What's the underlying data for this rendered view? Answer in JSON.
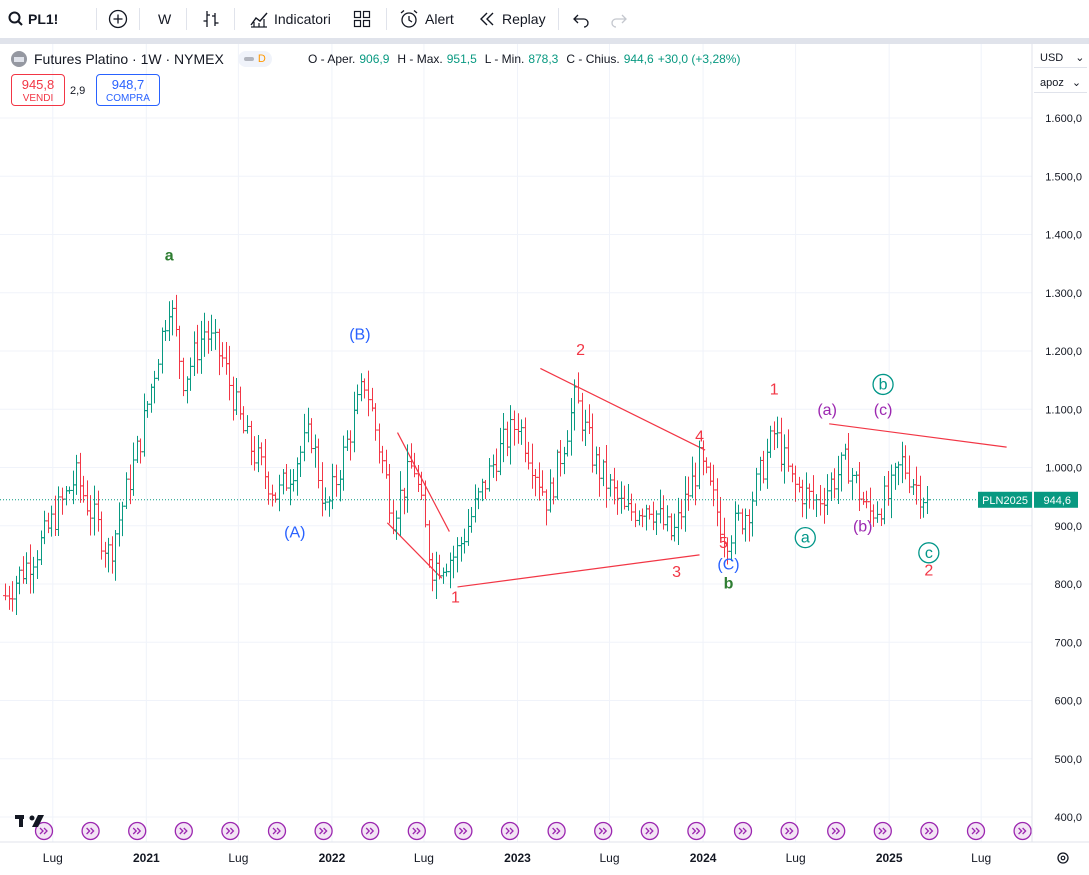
{
  "toolbar": {
    "symbol": "PL1!",
    "interval": "W",
    "indicators_label": "Indicatori",
    "alert_label": "Alert",
    "replay_label": "Replay"
  },
  "legend": {
    "title": "Futures Platino · 1W · NYMEX",
    "badge": "D",
    "open_label": "O - Aper.",
    "open": "906,9",
    "high_label": "H - Max.",
    "high": "951,5",
    "low_label": "L - Min.",
    "low": "878,3",
    "close_label": "C - Chius.",
    "close": "944,6",
    "change": "+30,0 (+3,28%)"
  },
  "trade": {
    "sell_price": "945,8",
    "sell_label": "VENDI",
    "spread": "2,9",
    "buy_price": "948,7",
    "buy_label": "COMPRA"
  },
  "scale_controls": {
    "currency": "USD",
    "mode": "apoz"
  },
  "colors": {
    "up": "#089981",
    "down": "#f23645",
    "blue_wave": "#2962ff",
    "green_wave": "#2e7d32",
    "purple_wave": "#9c27b0",
    "teal_wave": "#009688",
    "event": "#9c27b0"
  },
  "chart_data": {
    "type": "bar",
    "style": "ohlc",
    "ylim": [
      400,
      1680
    ],
    "y_ticks": [
      "1.600,0",
      "1.500,0",
      "1.400,0",
      "1.300,0",
      "1.200,0",
      "1.100,0",
      "1.000,0",
      "900,0",
      "800,0",
      "700,0",
      "600,0",
      "500,0",
      "400,0"
    ],
    "y_tick_values": [
      1600,
      1500,
      1400,
      1300,
      1200,
      1100,
      1000,
      900,
      800,
      700,
      600,
      500,
      400
    ],
    "x_ticks": [
      {
        "label": "Lug",
        "date": "2020-07-01"
      },
      {
        "label": "2021",
        "date": "2021-01-01"
      },
      {
        "label": "Lug",
        "date": "2021-07-01"
      },
      {
        "label": "2022",
        "date": "2022-01-01"
      },
      {
        "label": "Lug",
        "date": "2022-07-01"
      },
      {
        "label": "2023",
        "date": "2023-01-01"
      },
      {
        "label": "Lug",
        "date": "2023-07-01"
      },
      {
        "label": "2024",
        "date": "2024-01-01"
      },
      {
        "label": "Lug",
        "date": "2024-07-01"
      },
      {
        "label": "2025",
        "date": "2025-01-01"
      },
      {
        "label": "Lug",
        "date": "2025-07-01"
      }
    ],
    "x_range": [
      "2020-03-29",
      "2025-10-05"
    ],
    "last_price_label": "PLN2025",
    "last_price": 944.6,
    "last_price_text": "944,6",
    "anchors": [
      {
        "date": "2020-03-29",
        "price": 780
      },
      {
        "date": "2020-06-01",
        "price": 860
      },
      {
        "date": "2020-08-15",
        "price": 985
      },
      {
        "date": "2020-10-20",
        "price": 850
      },
      {
        "date": "2020-12-20",
        "price": 1050
      },
      {
        "date": "2021-02-15",
        "price": 1290
      },
      {
        "date": "2021-03-15",
        "price": 1150
      },
      {
        "date": "2021-04-25",
        "price": 1235
      },
      {
        "date": "2021-05-30",
        "price": 1185
      },
      {
        "date": "2021-07-15",
        "price": 1050
      },
      {
        "date": "2021-09-15",
        "price": 950
      },
      {
        "date": "2021-11-20",
        "price": 1060
      },
      {
        "date": "2021-12-20",
        "price": 920
      },
      {
        "date": "2022-03-07",
        "price": 1150
      },
      {
        "date": "2022-05-01",
        "price": 920
      },
      {
        "date": "2022-06-10",
        "price": 1010
      },
      {
        "date": "2022-07-15",
        "price": 830
      },
      {
        "date": "2022-09-01",
        "price": 850
      },
      {
        "date": "2022-11-20",
        "price": 1020
      },
      {
        "date": "2023-01-01",
        "price": 1080
      },
      {
        "date": "2023-03-01",
        "price": 940
      },
      {
        "date": "2023-04-25",
        "price": 1120
      },
      {
        "date": "2023-06-01",
        "price": 1010
      },
      {
        "date": "2023-08-01",
        "price": 920
      },
      {
        "date": "2023-09-15",
        "price": 940
      },
      {
        "date": "2023-11-01",
        "price": 880
      },
      {
        "date": "2023-12-25",
        "price": 1010
      },
      {
        "date": "2024-02-15",
        "price": 880
      },
      {
        "date": "2024-03-30",
        "price": 930
      },
      {
        "date": "2024-05-20",
        "price": 1060
      },
      {
        "date": "2024-06-25",
        "price": 970
      },
      {
        "date": "2024-08-10",
        "price": 940
      },
      {
        "date": "2024-10-10",
        "price": 1010
      },
      {
        "date": "2024-11-20",
        "price": 920
      },
      {
        "date": "2025-01-01",
        "price": 950
      },
      {
        "date": "2025-01-25",
        "price": 1010
      },
      {
        "date": "2025-03-01",
        "price": 960
      },
      {
        "date": "2025-03-20",
        "price": 944.6
      }
    ],
    "trendlines": [
      {
        "from": {
          "date": "2023-02-15",
          "price": 1170
        },
        "to": {
          "date": "2024-01-05",
          "price": 1030
        }
      },
      {
        "from": {
          "date": "2022-09-05",
          "price": 795
        },
        "to": {
          "date": "2023-12-25",
          "price": 850
        }
      },
      {
        "from": {
          "date": "2022-05-10",
          "price": 1060
        },
        "to": {
          "date": "2022-08-20",
          "price": 890
        }
      },
      {
        "from": {
          "date": "2022-04-20",
          "price": 905
        },
        "to": {
          "date": "2022-08-05",
          "price": 810
        }
      },
      {
        "from": {
          "date": "2024-09-05",
          "price": 1075
        },
        "to": {
          "date": "2025-08-20",
          "price": 1035
        }
      }
    ],
    "annotations": [
      {
        "text": "a",
        "date": "2021-02-15",
        "price": 1355,
        "color": "green"
      },
      {
        "text": "(B)",
        "date": "2022-02-25",
        "price": 1220,
        "color": "blue"
      },
      {
        "text": "(A)",
        "date": "2021-10-20",
        "price": 880,
        "color": "blue"
      },
      {
        "text": "1",
        "date": "2022-09-01",
        "price": 768,
        "color": "red"
      },
      {
        "text": "2",
        "date": "2023-05-05",
        "price": 1193,
        "color": "red"
      },
      {
        "text": "3",
        "date": "2023-11-10",
        "price": 812,
        "color": "red"
      },
      {
        "text": "4",
        "date": "2023-12-25",
        "price": 1045,
        "color": "red"
      },
      {
        "text": "5",
        "date": "2024-02-10",
        "price": 862,
        "color": "red"
      },
      {
        "text": "(C)",
        "date": "2024-02-20",
        "price": 825,
        "color": "blue"
      },
      {
        "text": "b",
        "date": "2024-02-20",
        "price": 792,
        "color": "green"
      },
      {
        "text": "1",
        "date": "2024-05-20",
        "price": 1125,
        "color": "red"
      },
      {
        "text": "(a)",
        "date": "2024-09-01",
        "price": 1090,
        "color": "purple"
      },
      {
        "text": "(c)",
        "date": "2024-12-20",
        "price": 1090,
        "color": "purple"
      },
      {
        "text": "b",
        "date": "2024-12-20",
        "price": 1134,
        "color": "teal",
        "circled": true
      },
      {
        "text": "a",
        "date": "2024-07-20",
        "price": 871,
        "color": "teal",
        "circled": true
      },
      {
        "text": "(b)",
        "date": "2024-11-10",
        "price": 890,
        "color": "purple"
      },
      {
        "text": "c",
        "date": "2025-03-20",
        "price": 845,
        "color": "teal",
        "circled": true
      },
      {
        "text": "2",
        "date": "2025-03-20",
        "price": 815,
        "color": "red"
      }
    ]
  }
}
